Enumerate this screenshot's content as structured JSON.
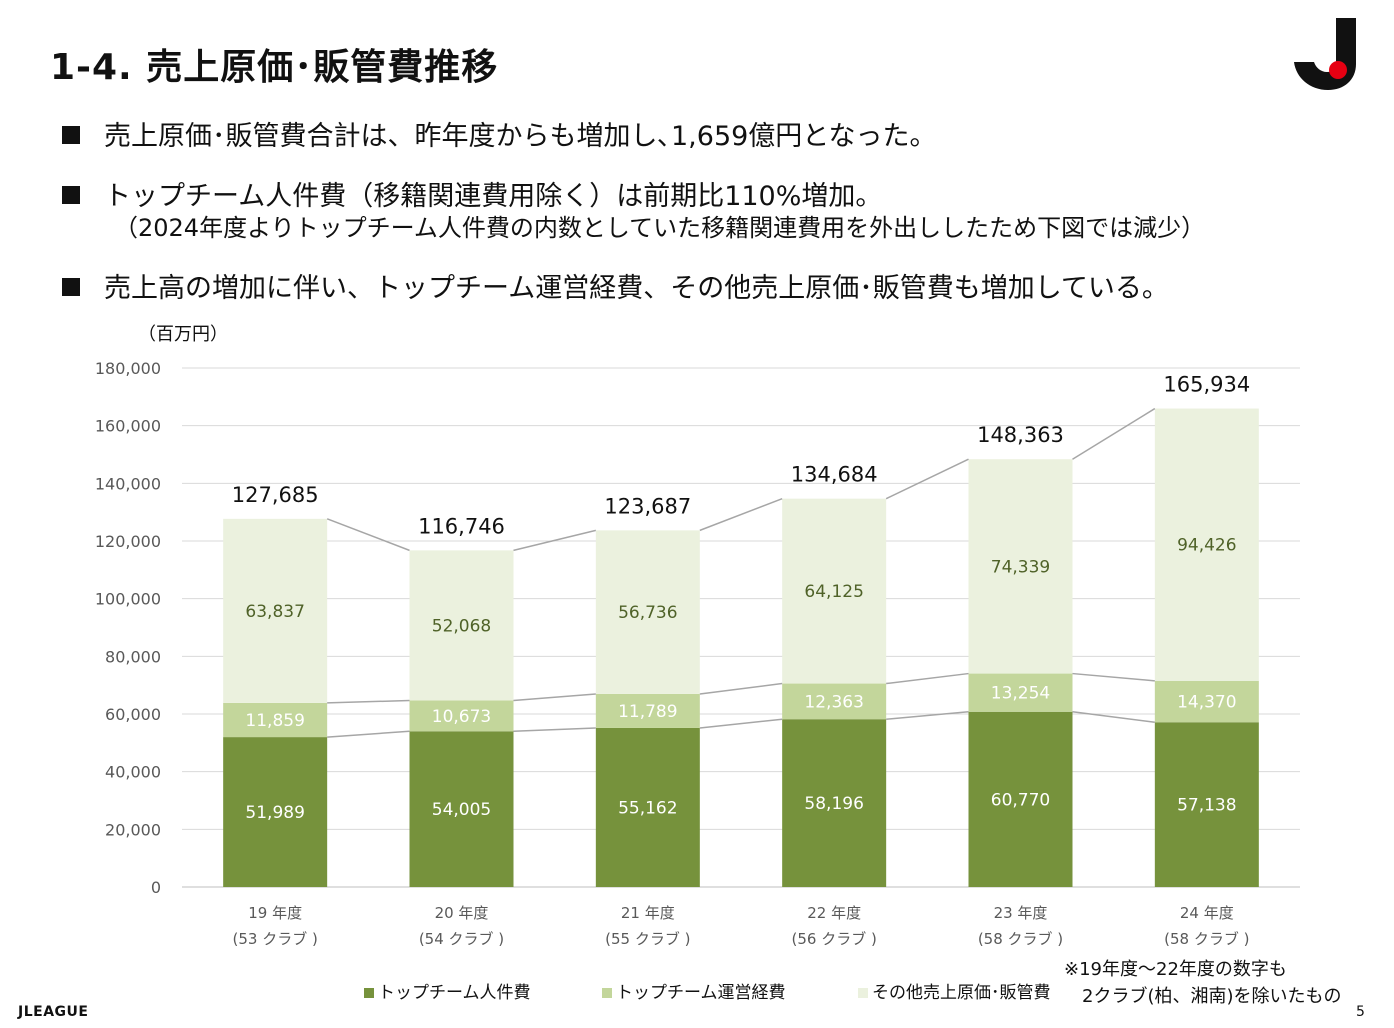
{
  "header": {
    "title": "1-4. 売上原価･販管費推移",
    "logo_icon": "jleague-emblem-icon"
  },
  "bullets": [
    "売上原価･販管費合計は、昨年度からも増加し､1,659億円となった。",
    "トップチーム人件費（移籍関連費用除く）は前期比110%増加。",
    "売上高の増加に伴い、トップチーム運営経費、その他売上原価･販管費も増加している。"
  ],
  "bullet_sub": "（2024年度よりトップチーム人件費の内数としていた移籍関連費用を外出ししたため下図では減少）",
  "unit_label": "（百万円）",
  "note_lines": [
    "※19年度～22年度の数字も",
    "2クラブ(柏、湘南)を除いたもの"
  ],
  "footer": {
    "brand": "JLEAGUE",
    "page": "5"
  },
  "colors": {
    "dark": "#76923c",
    "mid": "#c3d69b",
    "light": "#ebf1de",
    "line": "#a6a6a6",
    "grid": "#d9d9d9"
  },
  "chart_data": {
    "type": "bar",
    "stacked": true,
    "categories": [
      "19 年度",
      "20 年度",
      "21 年度",
      "22 年度",
      "23 年度",
      "24 年度"
    ],
    "subcategories": [
      "(53 クラブ )",
      "(54 クラブ )",
      "(55 クラブ )",
      "(56 クラブ )",
      "(58 クラブ )",
      "(58 クラブ )"
    ],
    "series": [
      {
        "name": "トップチーム人件費",
        "values": [
          51989,
          54005,
          55162,
          58196,
          60770,
          57138
        ],
        "labels": [
          "51,989",
          "54,005",
          "55,162",
          "58,196",
          "60,770",
          "57,138"
        ]
      },
      {
        "name": "トップチーム運営経費",
        "values": [
          11859,
          10673,
          11789,
          12363,
          13254,
          14370
        ],
        "labels": [
          "11,859",
          "10,673",
          "11,789",
          "12,363",
          "13,254",
          "14,370"
        ]
      },
      {
        "name": "その他売上原価･販管費",
        "values": [
          63837,
          52068,
          56736,
          64125,
          74339,
          94426
        ],
        "labels": [
          "63,837",
          "52,068",
          "56,736",
          "64,125",
          "74,339",
          "94,426"
        ]
      }
    ],
    "totals": [
      "127,685",
      "116,746",
      "123,687",
      "134,684",
      "148,363",
      "165,934"
    ],
    "ylim": [
      0,
      180000
    ],
    "yticks": [
      0,
      20000,
      40000,
      60000,
      80000,
      100000,
      120000,
      140000,
      160000,
      180000
    ],
    "ytick_labels": [
      "0",
      "20,000",
      "40,000",
      "60,000",
      "80,000",
      "100,000",
      "120,000",
      "140,000",
      "160,000",
      "180,000"
    ],
    "ylabel": "（百万円）",
    "legend_position": "bottom"
  }
}
